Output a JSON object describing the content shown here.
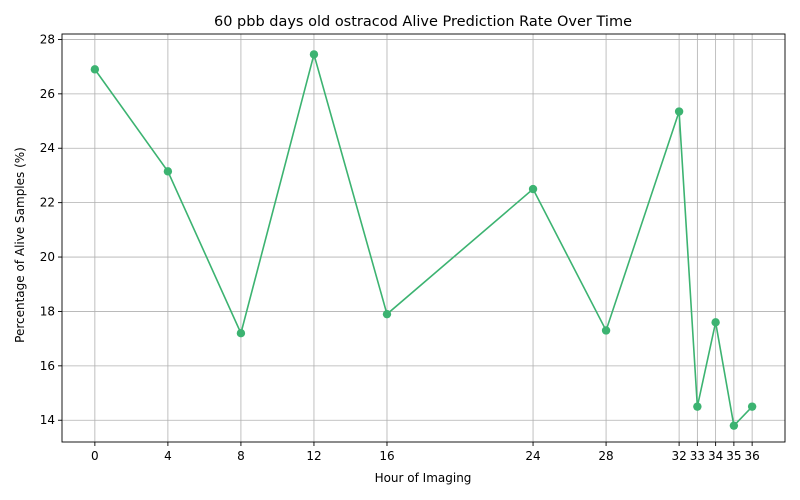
{
  "chart_data": {
    "type": "line",
    "title": "60 pbb days old ostracod Alive Prediction Rate Over Time",
    "xlabel": "Hour of Imaging",
    "ylabel": "Percentage of Alive Samples (%)",
    "x": [
      0,
      4,
      8,
      12,
      16,
      24,
      28,
      32,
      33,
      34,
      35,
      36
    ],
    "y": [
      26.9,
      23.15,
      17.2,
      27.45,
      17.9,
      22.5,
      17.3,
      25.35,
      14.5,
      17.6,
      13.8,
      14.5
    ],
    "xticks": [
      0,
      4,
      8,
      12,
      16,
      24,
      28,
      32,
      33,
      34,
      35,
      36
    ],
    "yticks": [
      14,
      16,
      18,
      20,
      22,
      24,
      26,
      28
    ],
    "xlim": [
      -1.8,
      37.8
    ],
    "ylim": [
      13.2,
      28.2
    ],
    "grid": true,
    "color": "#3cb371"
  }
}
